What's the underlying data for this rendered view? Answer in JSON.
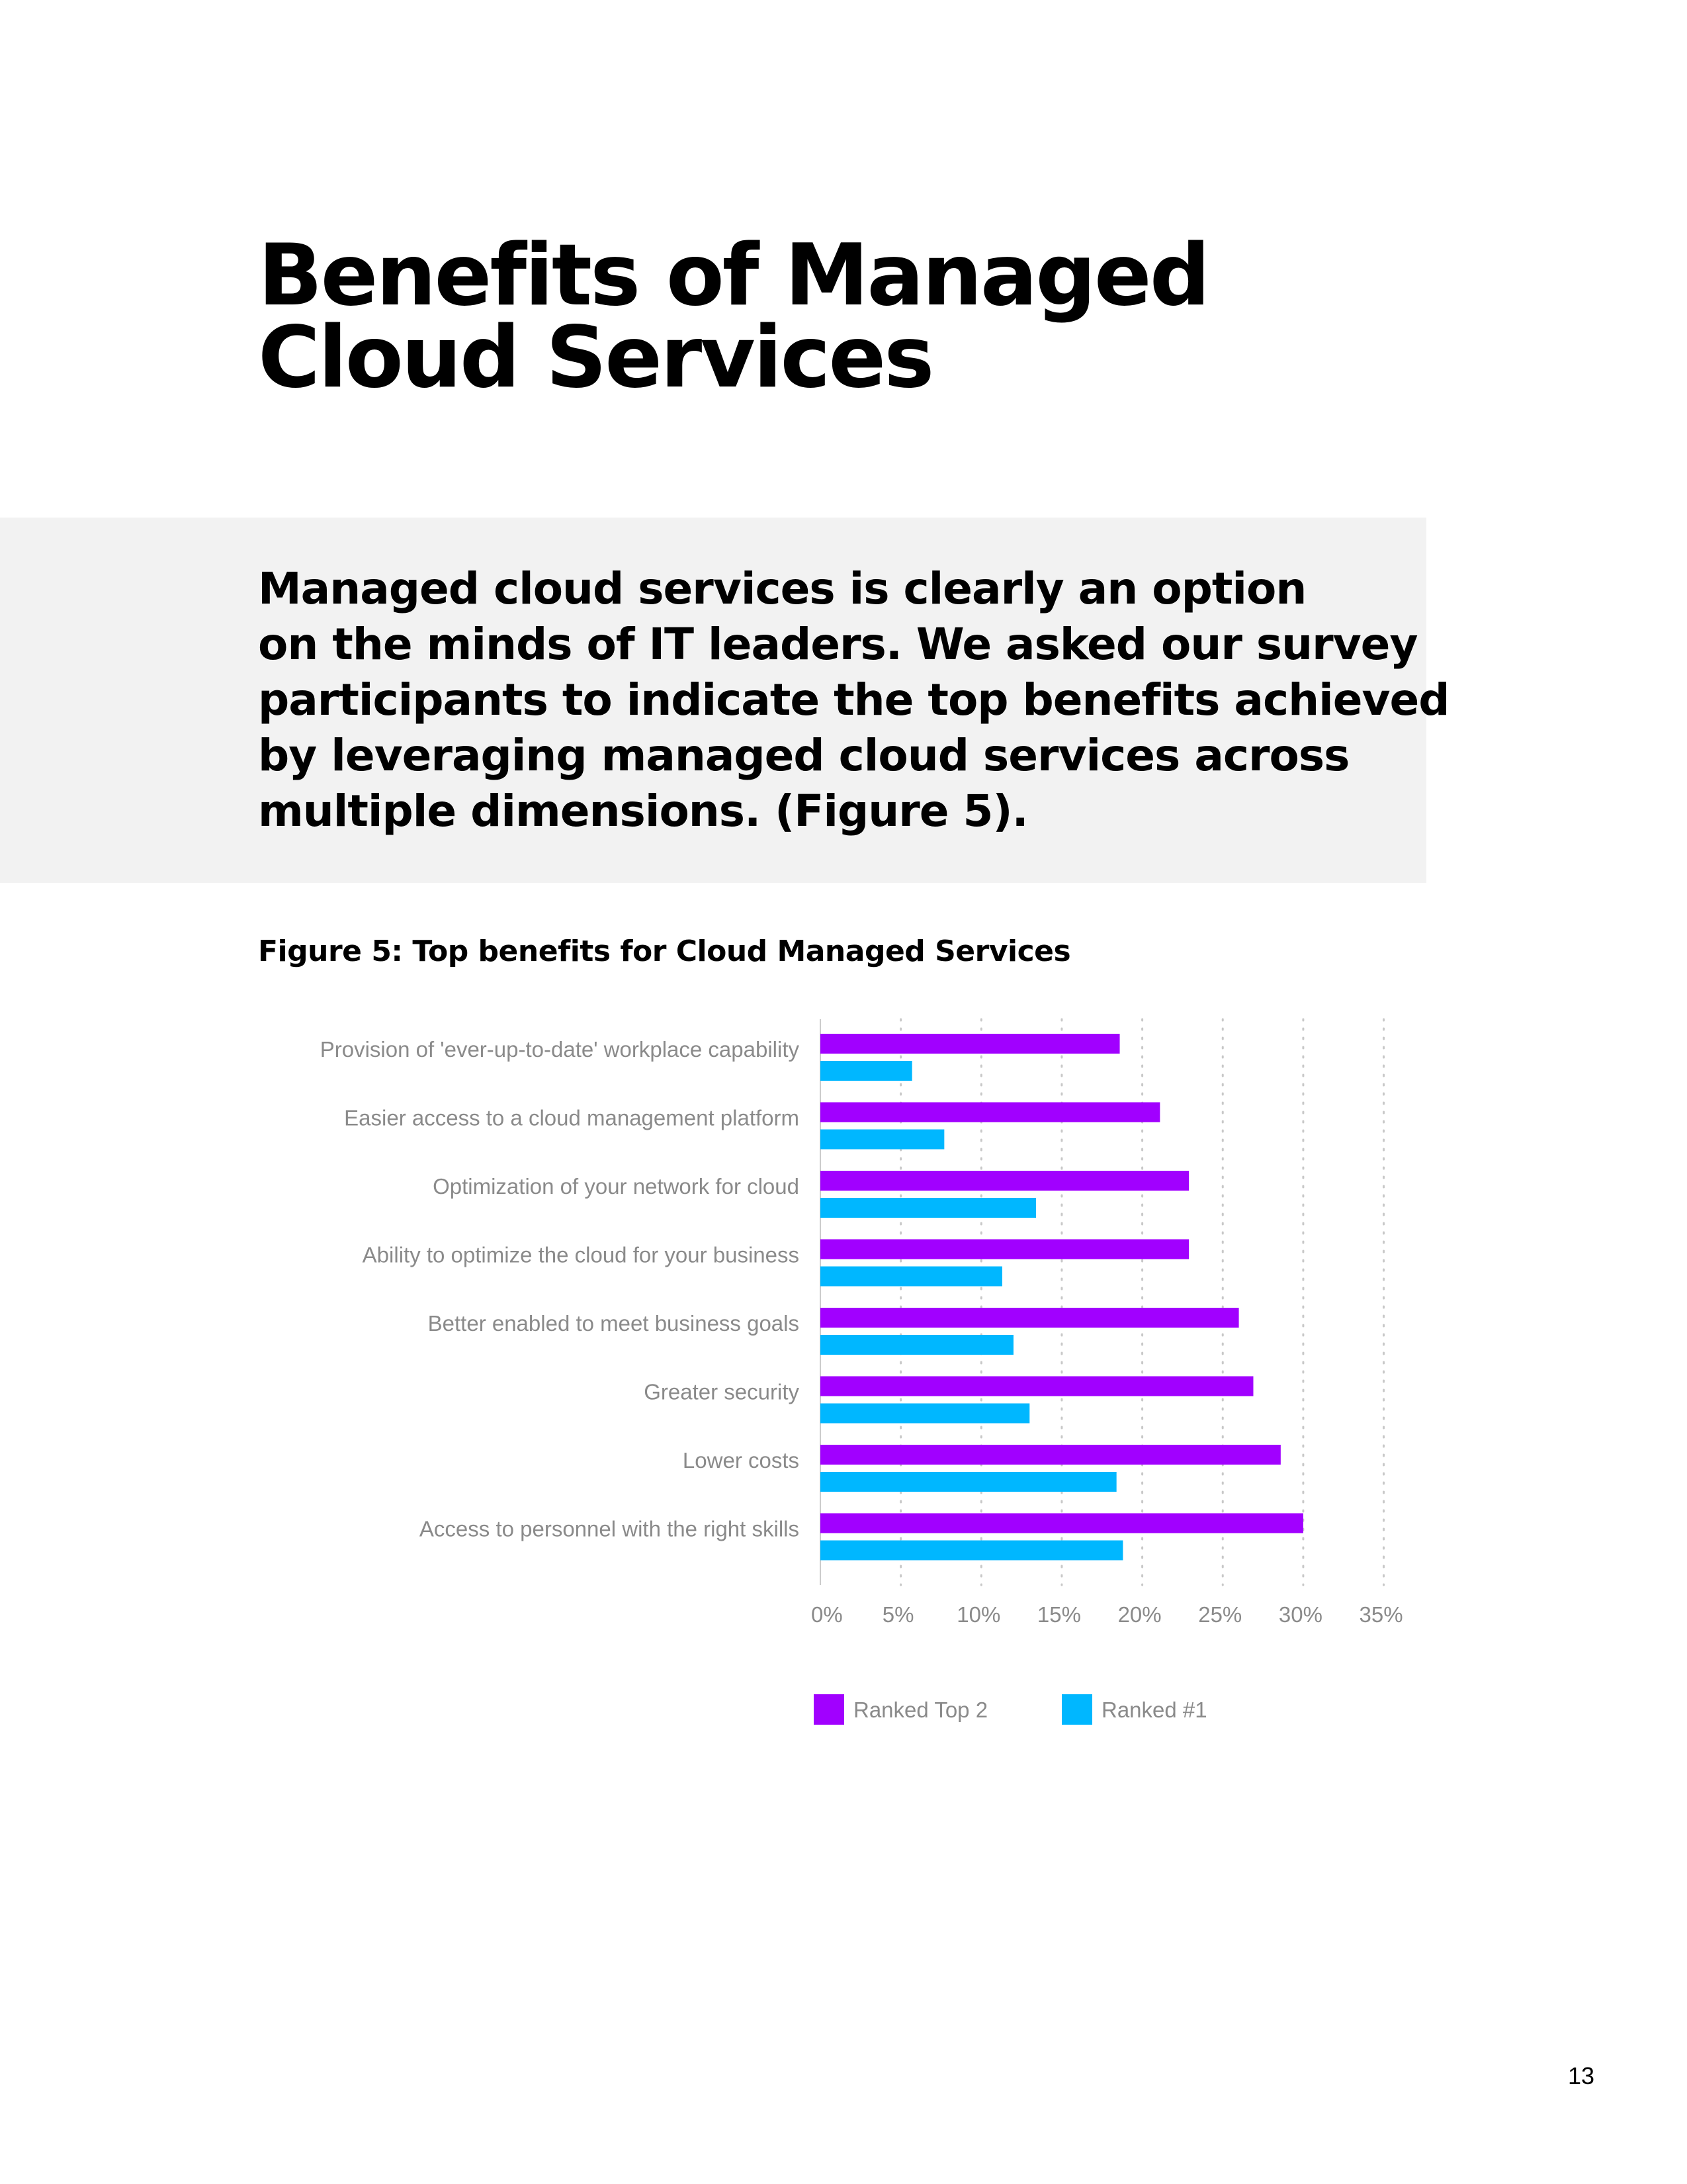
{
  "heading": {
    "title_lines": [
      "Benefits of Managed",
      "Cloud Services"
    ]
  },
  "intro": {
    "lines": [
      "Managed cloud services is clearly an option",
      "on the minds of IT leaders. We asked our survey",
      "participants to indicate the top benefits achieved",
      "by leveraging managed cloud services across",
      "multiple dimensions. (Figure 5)."
    ]
  },
  "figure": {
    "caption": "Figure 5: Top benefits for Cloud Managed Services"
  },
  "colors": {
    "top2": "#a100ff",
    "rank1": "#00b7ff",
    "grid": "#c8c8c8",
    "axis": "#cccccc",
    "band": "#f2f2f2"
  },
  "chart_data": {
    "type": "bar",
    "orientation": "horizontal",
    "title": "Figure 5: Top benefits for Cloud Managed Services",
    "categories": [
      "Provision of 'ever-up-to-date' workplace capability",
      "Easier access to a cloud management platform",
      "Optimization of your network for cloud",
      "Ability to optimize the cloud for your business",
      "Better enabled to meet business goals",
      "Greater security",
      "Lower costs",
      "Access to personnel with the right skills"
    ],
    "series": [
      {
        "name": "Ranked Top 2",
        "values": [
          18.6,
          21.1,
          22.9,
          22.9,
          26.0,
          26.9,
          28.6,
          30.0
        ]
      },
      {
        "name": "Ranked #1",
        "values": [
          5.7,
          7.7,
          13.4,
          11.3,
          12.0,
          13.0,
          18.4,
          18.8
        ]
      }
    ],
    "xlim": [
      0,
      35
    ],
    "xticks": [
      0,
      5,
      10,
      15,
      20,
      25,
      30,
      35
    ],
    "xtick_labels": [
      "0%",
      "5%",
      "10%",
      "15%",
      "20%",
      "25%",
      "30%",
      "35%"
    ],
    "xlabel": "",
    "ylabel": "",
    "grid": "vertical dotted",
    "legend_position": "bottom-center"
  },
  "page": {
    "number": "13"
  }
}
